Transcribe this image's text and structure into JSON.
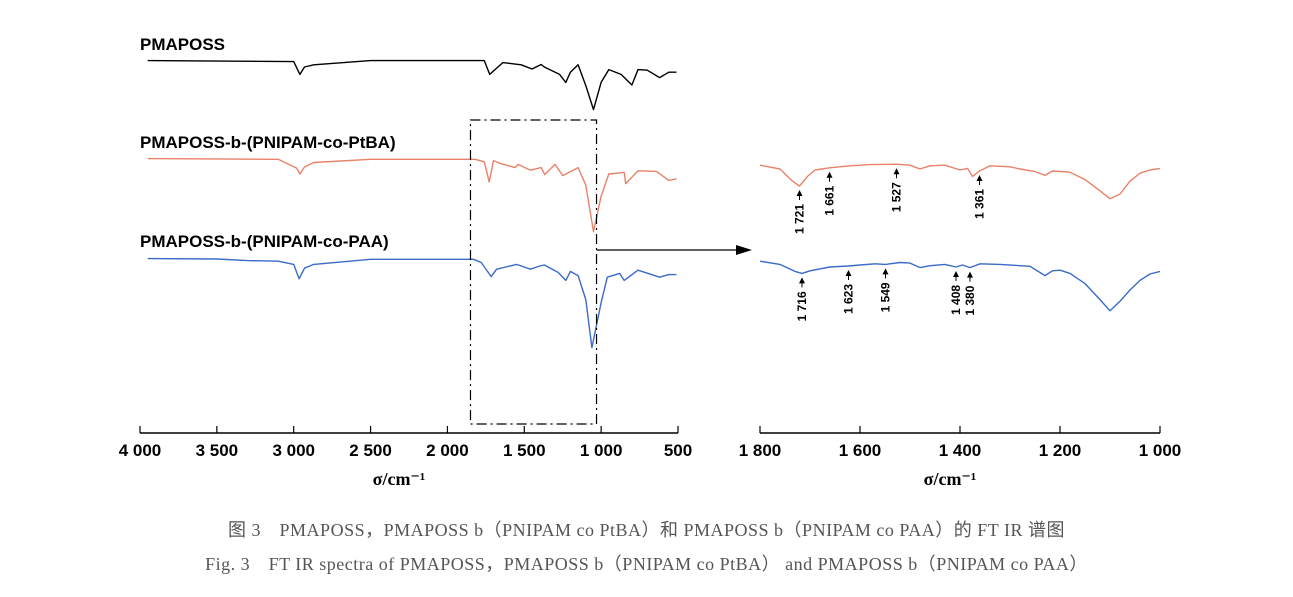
{
  "chart_data": [
    {
      "type": "line",
      "panel": "full",
      "xlabel": "σ/cm⁻¹",
      "xlim": [
        4000,
        500
      ],
      "x_reversed": true,
      "x_ticks": [
        {
          "value": 4000,
          "label": "4 000"
        },
        {
          "value": 3500,
          "label": "3 500"
        },
        {
          "value": 3000,
          "label": "3 000"
        },
        {
          "value": 2500,
          "label": "2 500"
        },
        {
          "value": 2000,
          "label": "2 000"
        },
        {
          "value": 1500,
          "label": "1 500"
        },
        {
          "value": 1000,
          "label": "1 000"
        },
        {
          "value": 500,
          "label": "500"
        }
      ],
      "zoom_box": {
        "x_range": [
          1850,
          1030
        ],
        "description": "dashed box"
      },
      "series": [
        {
          "name": "PMAPOSS",
          "color": "#000000",
          "points": [
            [
              3950,
              0.98
            ],
            [
              3000,
              0.95
            ],
            [
              2960,
              0.55
            ],
            [
              2930,
              0.78
            ],
            [
              2870,
              0.85
            ],
            [
              2500,
              0.98
            ],
            [
              1760,
              0.98
            ],
            [
              1725,
              0.55
            ],
            [
              1640,
              0.92
            ],
            [
              1520,
              0.85
            ],
            [
              1450,
              0.72
            ],
            [
              1390,
              0.86
            ],
            [
              1370,
              0.78
            ],
            [
              1270,
              0.55
            ],
            [
              1230,
              0.3
            ],
            [
              1200,
              0.62
            ],
            [
              1150,
              0.85
            ],
            [
              1100,
              0.2
            ],
            [
              1050,
              -0.55
            ],
            [
              1000,
              0.3
            ],
            [
              950,
              0.7
            ],
            [
              870,
              0.55
            ],
            [
              800,
              0.22
            ],
            [
              760,
              0.7
            ],
            [
              700,
              0.68
            ],
            [
              620,
              0.45
            ],
            [
              560,
              0.62
            ],
            [
              510,
              0.62
            ]
          ]
        },
        {
          "name": "PMAPOSS-b-(PNIPAM-co-PtBA)",
          "color": "#e8826a",
          "points": [
            [
              3950,
              0.98
            ],
            [
              3100,
              0.96
            ],
            [
              2980,
              0.68
            ],
            [
              2960,
              0.5
            ],
            [
              2930,
              0.72
            ],
            [
              2870,
              0.86
            ],
            [
              2500,
              0.96
            ],
            [
              1820,
              0.96
            ],
            [
              1760,
              0.88
            ],
            [
              1728,
              0.25
            ],
            [
              1700,
              0.92
            ],
            [
              1650,
              0.82
            ],
            [
              1560,
              0.7
            ],
            [
              1540,
              0.8
            ],
            [
              1460,
              0.62
            ],
            [
              1390,
              0.7
            ],
            [
              1367,
              0.48
            ],
            [
              1300,
              0.8
            ],
            [
              1250,
              0.45
            ],
            [
              1150,
              0.7
            ],
            [
              1100,
              0.15
            ],
            [
              1050,
              -1.3
            ],
            [
              1000,
              -0.2
            ],
            [
              950,
              0.5
            ],
            [
              850,
              0.55
            ],
            [
              840,
              0.2
            ],
            [
              760,
              0.6
            ],
            [
              640,
              0.58
            ],
            [
              560,
              0.3
            ],
            [
              510,
              0.35
            ]
          ]
        },
        {
          "name": "PMAPOSS-b-(PNIPAM-co-PAA)",
          "color": "#3b6bc8",
          "points": [
            [
              3950,
              0.98
            ],
            [
              3500,
              0.97
            ],
            [
              3300,
              0.92
            ],
            [
              3100,
              0.9
            ],
            [
              3000,
              0.8
            ],
            [
              2965,
              0.35
            ],
            [
              2930,
              0.68
            ],
            [
              2870,
              0.8
            ],
            [
              2500,
              0.96
            ],
            [
              1830,
              0.96
            ],
            [
              1780,
              0.86
            ],
            [
              1715,
              0.42
            ],
            [
              1680,
              0.65
            ],
            [
              1620,
              0.72
            ],
            [
              1550,
              0.8
            ],
            [
              1460,
              0.65
            ],
            [
              1400,
              0.75
            ],
            [
              1370,
              0.78
            ],
            [
              1280,
              0.55
            ],
            [
              1230,
              0.3
            ],
            [
              1200,
              0.58
            ],
            [
              1150,
              0.45
            ],
            [
              1100,
              -0.3
            ],
            [
              1060,
              -1.8
            ],
            [
              1000,
              -0.4
            ],
            [
              960,
              0.4
            ],
            [
              880,
              0.52
            ],
            [
              850,
              0.3
            ],
            [
              760,
              0.62
            ],
            [
              620,
              0.4
            ],
            [
              560,
              0.48
            ],
            [
              510,
              0.48
            ]
          ]
        }
      ]
    },
    {
      "type": "line",
      "panel": "zoom",
      "xlabel": "σ/cm⁻¹",
      "xlim": [
        1800,
        1000
      ],
      "x_reversed": true,
      "x_ticks": [
        {
          "value": 1800,
          "label": "1 800"
        },
        {
          "value": 1600,
          "label": "1 600"
        },
        {
          "value": 1400,
          "label": "1 400"
        },
        {
          "value": 1200,
          "label": "1 200"
        },
        {
          "value": 1000,
          "label": "1 000"
        }
      ],
      "series": [
        {
          "name": "PMAPOSS-b-(PNIPAM-co-PtBA)",
          "color": "#e8826a",
          "points": [
            [
              1800,
              0.9
            ],
            [
              1760,
              0.78
            ],
            [
              1735,
              0.4
            ],
            [
              1721,
              0.25
            ],
            [
              1705,
              0.55
            ],
            [
              1690,
              0.75
            ],
            [
              1661,
              0.82
            ],
            [
              1620,
              0.88
            ],
            [
              1580,
              0.92
            ],
            [
              1527,
              0.93
            ],
            [
              1500,
              0.9
            ],
            [
              1480,
              0.78
            ],
            [
              1460,
              0.88
            ],
            [
              1430,
              0.9
            ],
            [
              1400,
              0.75
            ],
            [
              1385,
              0.8
            ],
            [
              1375,
              0.55
            ],
            [
              1361,
              0.72
            ],
            [
              1340,
              0.88
            ],
            [
              1300,
              0.85
            ],
            [
              1280,
              0.78
            ],
            [
              1250,
              0.7
            ],
            [
              1230,
              0.58
            ],
            [
              1215,
              0.72
            ],
            [
              1180,
              0.68
            ],
            [
              1150,
              0.45
            ],
            [
              1120,
              0.1
            ],
            [
              1100,
              -0.15
            ],
            [
              1080,
              0.0
            ],
            [
              1060,
              0.4
            ],
            [
              1040,
              0.65
            ],
            [
              1020,
              0.75
            ],
            [
              1000,
              0.8
            ]
          ]
        },
        {
          "name": "PMAPOSS-b-(PNIPAM-co-PAA)",
          "color": "#3b6bc8",
          "points": [
            [
              1800,
              0.9
            ],
            [
              1760,
              0.8
            ],
            [
              1730,
              0.58
            ],
            [
              1716,
              0.52
            ],
            [
              1700,
              0.6
            ],
            [
              1660,
              0.72
            ],
            [
              1623,
              0.75
            ],
            [
              1600,
              0.78
            ],
            [
              1570,
              0.82
            ],
            [
              1549,
              0.8
            ],
            [
              1520,
              0.86
            ],
            [
              1500,
              0.84
            ],
            [
              1480,
              0.7
            ],
            [
              1460,
              0.76
            ],
            [
              1430,
              0.8
            ],
            [
              1408,
              0.72
            ],
            [
              1395,
              0.78
            ],
            [
              1380,
              0.7
            ],
            [
              1360,
              0.82
            ],
            [
              1320,
              0.8
            ],
            [
              1260,
              0.74
            ],
            [
              1230,
              0.45
            ],
            [
              1215,
              0.6
            ],
            [
              1200,
              0.62
            ],
            [
              1180,
              0.52
            ],
            [
              1150,
              0.2
            ],
            [
              1120,
              -0.3
            ],
            [
              1100,
              -0.65
            ],
            [
              1080,
              -0.35
            ],
            [
              1060,
              0.0
            ],
            [
              1040,
              0.3
            ],
            [
              1020,
              0.5
            ],
            [
              1000,
              0.58
            ]
          ]
        }
      ],
      "annotations": [
        {
          "series": "PMAPOSS-b-(PNIPAM-co-PtBA)",
          "x": 1721,
          "label": "1 721"
        },
        {
          "series": "PMAPOSS-b-(PNIPAM-co-PtBA)",
          "x": 1661,
          "label": "1 661"
        },
        {
          "series": "PMAPOSS-b-(PNIPAM-co-PtBA)",
          "x": 1527,
          "label": "1 527"
        },
        {
          "series": "PMAPOSS-b-(PNIPAM-co-PtBA)",
          "x": 1361,
          "label": "1 361"
        },
        {
          "series": "PMAPOSS-b-(PNIPAM-co-PAA)",
          "x": 1716,
          "label": "1 716"
        },
        {
          "series": "PMAPOSS-b-(PNIPAM-co-PAA)",
          "x": 1623,
          "label": "1 623"
        },
        {
          "series": "PMAPOSS-b-(PNIPAM-co-PAA)",
          "x": 1549,
          "label": "1 549"
        },
        {
          "series": "PMAPOSS-b-(PNIPAM-co-PAA)",
          "x": 1408,
          "label": "1 408"
        },
        {
          "series": "PMAPOSS-b-(PNIPAM-co-PAA)",
          "x": 1380,
          "label": "1 380"
        }
      ]
    }
  ],
  "caption": {
    "cn": "图 3　PMAPOSS，PMAPOSS b（PNIPAM co PtBA）和 PMAPOSS b（PNIPAM co PAA）的 FT IR 谱图",
    "en": "Fig. 3　FT IR spectra of PMAPOSS，PMAPOSS b（PNIPAM co PtBA） and PMAPOSS b（PNIPAM co PAA）"
  }
}
